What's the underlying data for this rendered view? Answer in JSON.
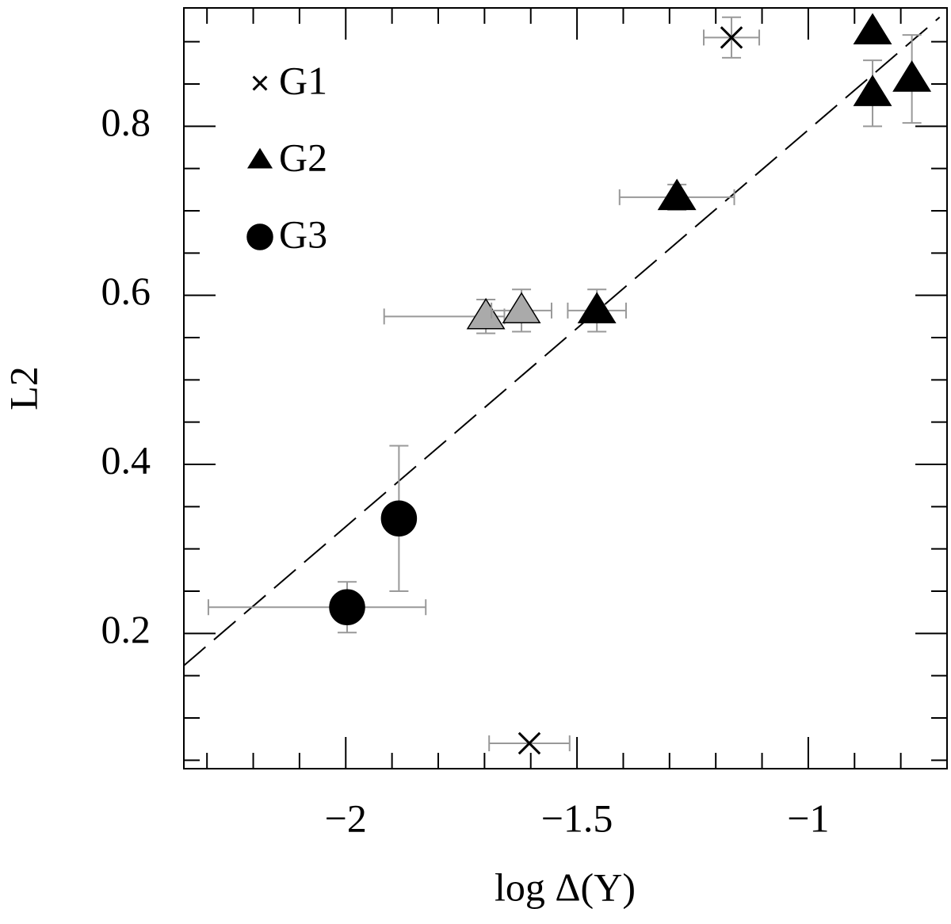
{
  "chart_data": {
    "type": "scatter",
    "xlabel": "log Δ(Y)",
    "ylabel": "L2",
    "xlim": [
      -2.35,
      -0.7
    ],
    "ylim": [
      0.04,
      0.94
    ],
    "xticks": [
      {
        "value": -2,
        "label": "−2"
      },
      {
        "value": -1.5,
        "label": "−1.5"
      },
      {
        "value": -1,
        "label": "−1"
      }
    ],
    "yticks": [
      0.2,
      0.4,
      0.6,
      0.8
    ],
    "xminorticks": [
      -2.3,
      -2.2,
      -2.1,
      -1.9,
      -1.8,
      -1.7,
      -1.6,
      -1.4,
      -1.3,
      -1.2,
      -1.1,
      -0.9,
      -0.8
    ],
    "yminorticks": [
      0.05,
      0.1,
      0.15,
      0.25,
      0.3,
      0.35,
      0.45,
      0.5,
      0.55,
      0.65,
      0.7,
      0.75,
      0.85,
      0.9
    ],
    "fit_line": {
      "x": [
        -2.35,
        -0.716
      ],
      "values": [
        0.162,
        0.929
      ],
      "color": "#000000"
    },
    "errorbar_color": "#999999",
    "series": [
      {
        "name": "G1",
        "marker": "x",
        "color": "#000000",
        "x": [
          -1.166,
          -1.603
        ],
        "values": [
          0.905,
          0.07
        ],
        "xerr": [
          [
            0.06,
            0.06
          ],
          [
            0.087,
            0.087
          ]
        ],
        "yerr": [
          [
            0.024,
            0.024
          ],
          null
        ]
      },
      {
        "name": "G2",
        "marker": "triangle",
        "color": "#000000",
        "x": [
          -0.861,
          -0.861,
          -0.776,
          -1.284,
          -1.457
        ],
        "values": [
          0.912,
          0.839,
          0.856,
          0.716,
          0.582
        ],
        "xerr": [
          null,
          null,
          null,
          [
            0.124,
            0.124
          ],
          [
            0.063,
            0.063
          ]
        ],
        "yerr": [
          null,
          [
            0.039,
            0.039
          ],
          [
            0.052,
            0.052
          ],
          [
            0.015,
            0.015
          ],
          [
            0.025,
            0.025
          ]
        ]
      },
      {
        "marker": "triangle",
        "color": "#aaaaaa",
        "x": [
          -1.697,
          -1.62
        ],
        "values": [
          0.575,
          0.582
        ],
        "xerr": [
          [
            0.22,
            0.04
          ],
          [
            0.065,
            0.065
          ]
        ],
        "yerr": [
          [
            0.02,
            0.02
          ],
          [
            0.025,
            0.025
          ]
        ]
      },
      {
        "name": "G3",
        "marker": "circle",
        "color": "#000000",
        "x": [
          -1.997,
          -1.885
        ],
        "values": [
          0.231,
          0.336
        ],
        "xerr": [
          [
            0.3,
            0.17
          ],
          null
        ],
        "yerr": [
          [
            0.03,
            0.03
          ],
          [
            0.086,
            0.086
          ]
        ]
      }
    ]
  }
}
